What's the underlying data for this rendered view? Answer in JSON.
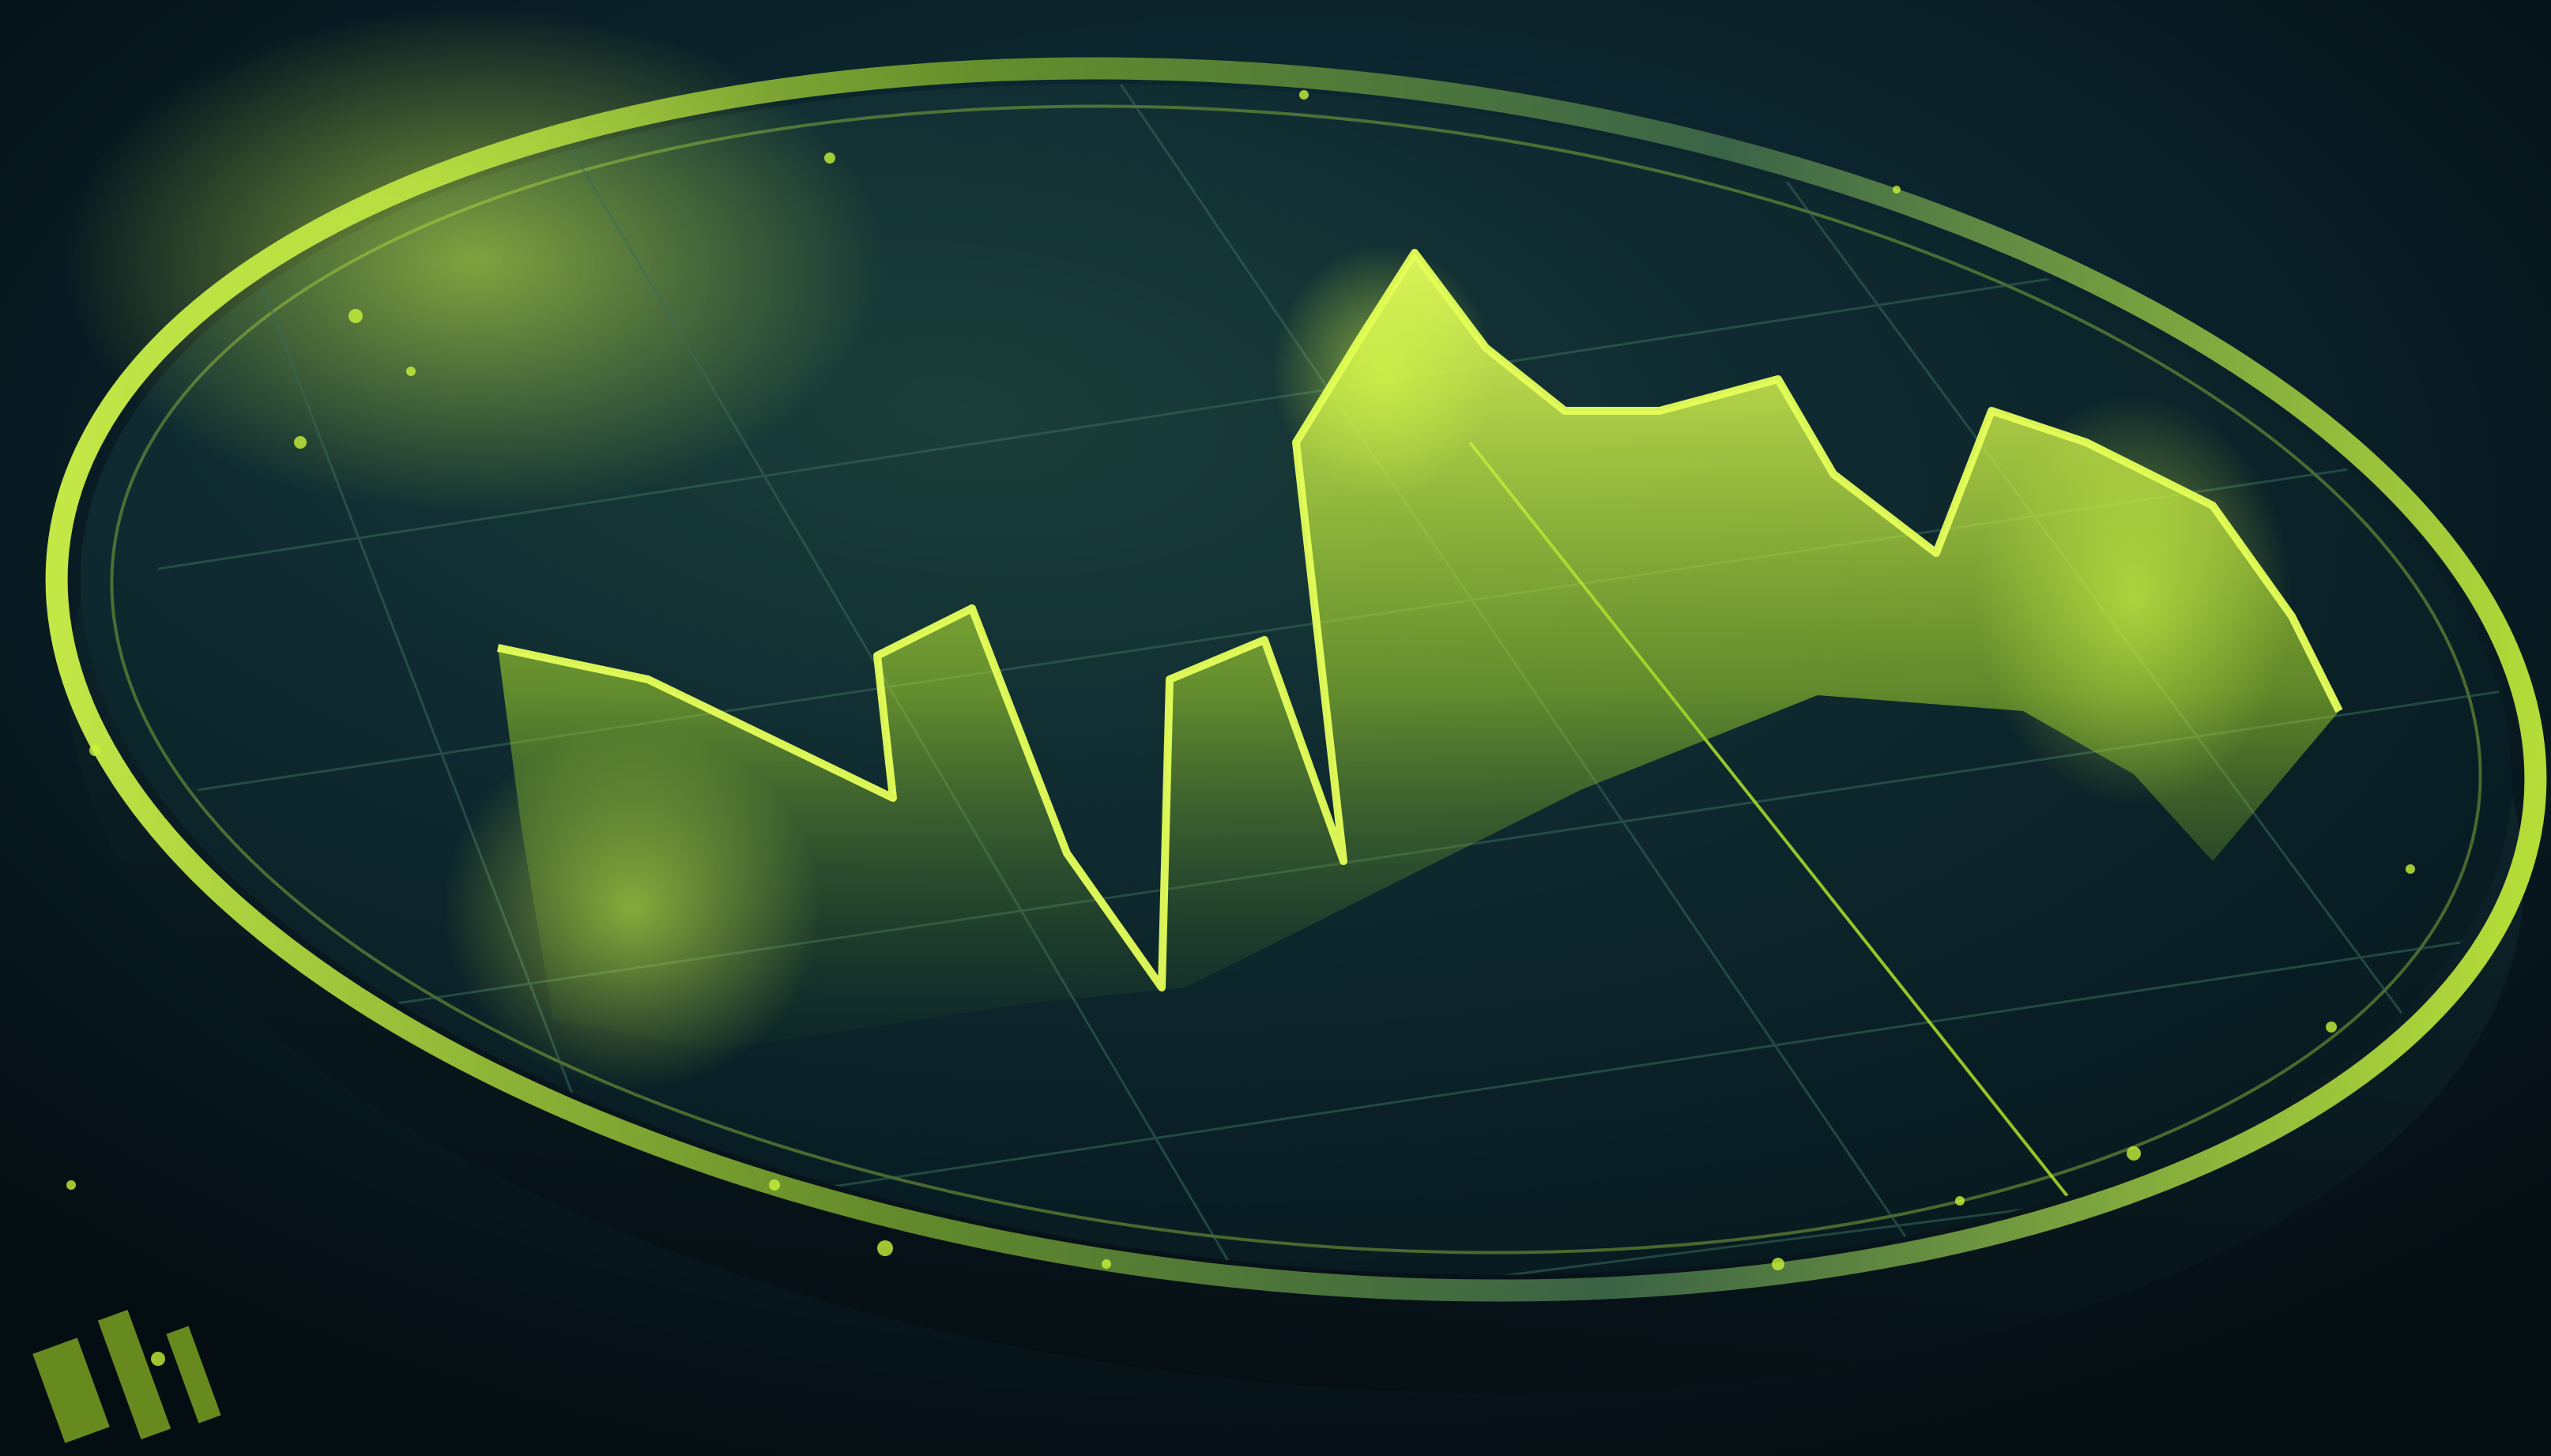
{
  "scene": {
    "subject": "coin-with-rising-price-wave",
    "colors": {
      "background": "#06141b",
      "background_glow": "#0f2d35",
      "coin_body": "#0b2229",
      "coin_face": "#0d2a31",
      "coin_rim": "#c8f23a",
      "accent": "#b8f02a",
      "accent_bright": "#e6ff5a",
      "grid_line": "#2f5a52"
    },
    "icons": [
      "coin-graphic",
      "price-wave-graphic",
      "grid-graphic"
    ]
  }
}
